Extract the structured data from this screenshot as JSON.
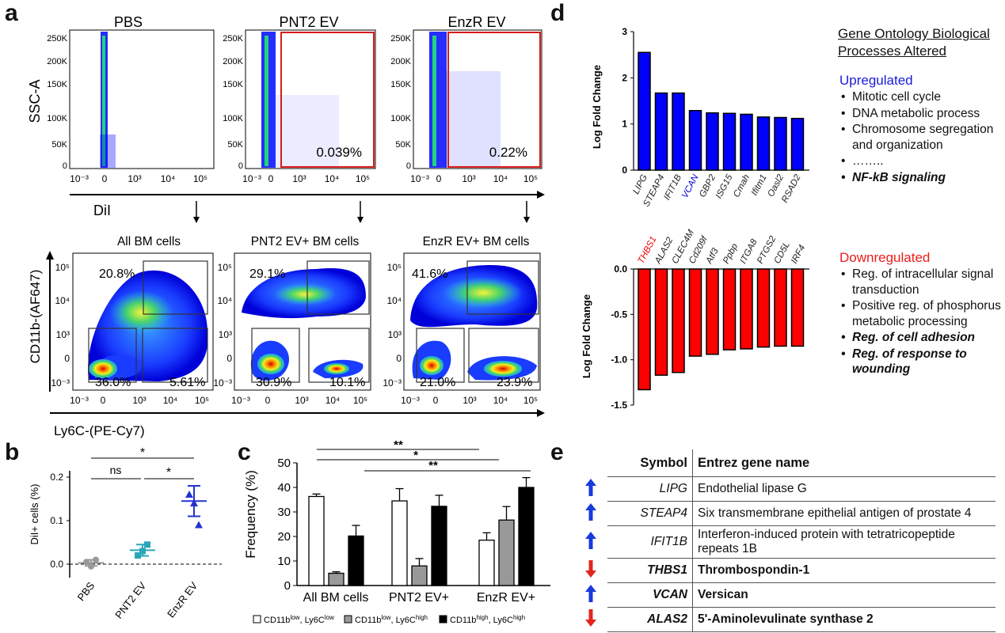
{
  "panel_labels": {
    "a": "a",
    "b": "b",
    "c": "c",
    "d": "d",
    "e": "e"
  },
  "panel_a": {
    "top_titles": [
      "PBS",
      "PNT2 EV",
      "EnzR EV"
    ],
    "top_ylabel": "SSC-A",
    "top_xlabel": "DiI",
    "top_yticks": [
      "250K",
      "200K",
      "150K",
      "100K",
      "50K",
      "0"
    ],
    "xticks": [
      "10⁻³",
      "0",
      "10³",
      "10⁴",
      "10⁵"
    ],
    "top_gate_pcts": [
      "0.039%",
      "0.22%"
    ],
    "bottom_titles": [
      "All BM cells",
      "PNT2 EV+ BM cells",
      "EnzR EV+ BM cells"
    ],
    "bottom_ylabel": "CD11b-(AF647)",
    "bottom_xlabel": "Ly6C-(PE-Cy7)",
    "bottom_yticks": [
      "10⁵",
      "10⁴",
      "10³",
      "0",
      "10⁻³"
    ],
    "bottom_pcts": [
      {
        "high": "20.8%",
        "lowlow": "36.0%",
        "lowhigh": "5.61%"
      },
      {
        "high": "29.1%",
        "lowlow": "30.9%",
        "lowhigh": "10.1%"
      },
      {
        "high": "41.6%",
        "lowlow": "21.0%",
        "lowhigh": "23.9%"
      }
    ]
  },
  "panel_b": {
    "ylabel": "DiI+ cells (%)",
    "yticks": [
      "0.2",
      "0.1",
      "0.0"
    ],
    "categories": [
      "PBS",
      "PNT2 EV",
      "EnzR EV"
    ],
    "sig": [
      "*",
      "ns",
      "*"
    ],
    "colors": [
      "#999999",
      "#2aa6b8",
      "#2233cc"
    ]
  },
  "panel_d": {
    "title": "Gene Ontology Biological Processes Altered",
    "up_head": "Upregulated",
    "up_items": [
      "Mitotic cell cycle",
      "DNA metabolic process",
      "Chromosome segregation and organization",
      "……..",
      "NF-kB signaling"
    ],
    "down_head": "Downregulated",
    "down_items": [
      "Reg. of intracellular signal transduction",
      "Positive reg. of phosphorus metabolic processing",
      "Reg. of cell adhesion",
      "Reg. of response to wounding"
    ],
    "ylabel_up": "Log Fold Change",
    "ylabel_down": "Log Fold Change",
    "up_color": "#0000ff",
    "down_color": "#ff0000"
  },
  "panel_e": {
    "headers": [
      "Symbol",
      "Entrez gene name"
    ],
    "rows": [
      {
        "dir": "up",
        "symbol": "LIPG",
        "name": "Endothelial lipase G"
      },
      {
        "dir": "up",
        "symbol": "STEAP4",
        "name": "Six transmembrane epithelial antigen of prostate 4"
      },
      {
        "dir": "up",
        "symbol": "IFIT1B",
        "name": "Interferon-induced protein with tetratricopeptide repeats 1B"
      },
      {
        "dir": "down",
        "symbol": "THBS1",
        "name": "Thrombospondin-1"
      },
      {
        "dir": "up",
        "symbol": "VCAN",
        "name": "Versican"
      },
      {
        "dir": "down",
        "symbol": "ALAS2",
        "name": "5'-Aminolevulinate synthase 2"
      }
    ]
  },
  "chart_data": [
    {
      "type": "scatter",
      "id": "panel_b",
      "title": "",
      "xlabel": "",
      "ylabel": "DiI+ cells (%)",
      "ylim": [
        -0.03,
        0.25
      ],
      "categories": [
        "PBS",
        "PNT2 EV",
        "EnzR EV"
      ],
      "points": [
        [
          0.005,
          -0.005,
          0.01
        ],
        [
          0.02,
          0.03,
          0.045
        ],
        [
          0.16,
          0.14,
          0.09
        ]
      ],
      "mean": [
        0.003,
        0.032,
        0.145
      ],
      "sem": [
        0.007,
        0.013,
        0.035
      ]
    },
    {
      "type": "bar",
      "id": "panel_c",
      "title": "",
      "xlabel": "",
      "ylabel": "Frequency (%)",
      "ylim": [
        0,
        50
      ],
      "yticks": [
        0,
        10,
        20,
        30,
        40,
        50
      ],
      "categories": [
        "All BM cells",
        "PNT2 EV+",
        "EnzR EV+"
      ],
      "series": [
        {
          "name": "CD11b^low, Ly6C^low",
          "color": "#ffffff",
          "values": [
            36.3,
            34.5,
            18.5
          ],
          "errors": [
            1,
            5,
            3
          ]
        },
        {
          "name": "CD11b^low, Ly6C^high",
          "color": "#999999",
          "values": [
            5,
            8,
            26.7
          ],
          "errors": [
            0.6,
            3,
            5.5
          ]
        },
        {
          "name": "CD11b^high, Ly6C^high",
          "color": "#000000",
          "values": [
            20.2,
            32.3,
            40
          ],
          "errors": [
            4.3,
            4.5,
            4
          ]
        }
      ],
      "legend": [
        {
          "main": "CD11b",
          "sup1": "low",
          "mid": ", Ly6C",
          "sup2": "low"
        },
        {
          "main": "CD11b",
          "sup1": "low",
          "mid": ", Ly6C",
          "sup2": "high"
        },
        {
          "main": "CD11b",
          "sup1": "high",
          "mid": ", Ly6C",
          "sup2": "high"
        }
      ],
      "sig": [
        "**",
        "*",
        "**"
      ]
    },
    {
      "type": "bar",
      "id": "panel_d_up",
      "ylabel": "Log Fold Change",
      "ylim": [
        0,
        3
      ],
      "yticks": [
        0,
        1,
        2,
        3
      ],
      "categories": [
        "LIPG",
        "STEAP4",
        "IFIT1B",
        "VCAN",
        "GBP2",
        "ISG15",
        "Cmah",
        "Ifitm1",
        "Oasl2",
        "RSAD2"
      ],
      "label_colors": [
        "#222",
        "#222",
        "#222",
        "#0000cc",
        "#222",
        "#222",
        "#222",
        "#222",
        "#222",
        "#222"
      ],
      "values": [
        2.55,
        1.67,
        1.67,
        1.29,
        1.24,
        1.23,
        1.21,
        1.15,
        1.14,
        1.12
      ]
    },
    {
      "type": "bar",
      "id": "panel_d_down",
      "ylabel": "Log Fold Change",
      "ylim": [
        -1.5,
        0
      ],
      "yticks": [
        0,
        -0.5,
        -1.0,
        -1.5
      ],
      "ytick_labels": [
        "0.0",
        "-0.5",
        "-1.0",
        "-1.5"
      ],
      "categories": [
        "THBS1",
        "ALAS2",
        "CLEC4M",
        "Cd209f",
        "Atf3",
        "Ppbp",
        "ITGA8",
        "PTGS2",
        "CD5L",
        "IRF4"
      ],
      "label_colors": [
        "#ee0000",
        "#222",
        "#222",
        "#222",
        "#222",
        "#222",
        "#222",
        "#222",
        "#222",
        "#222"
      ],
      "values": [
        -1.33,
        -1.17,
        -1.14,
        -0.96,
        -0.94,
        -0.89,
        -0.88,
        -0.86,
        -0.85,
        -0.85
      ]
    }
  ]
}
